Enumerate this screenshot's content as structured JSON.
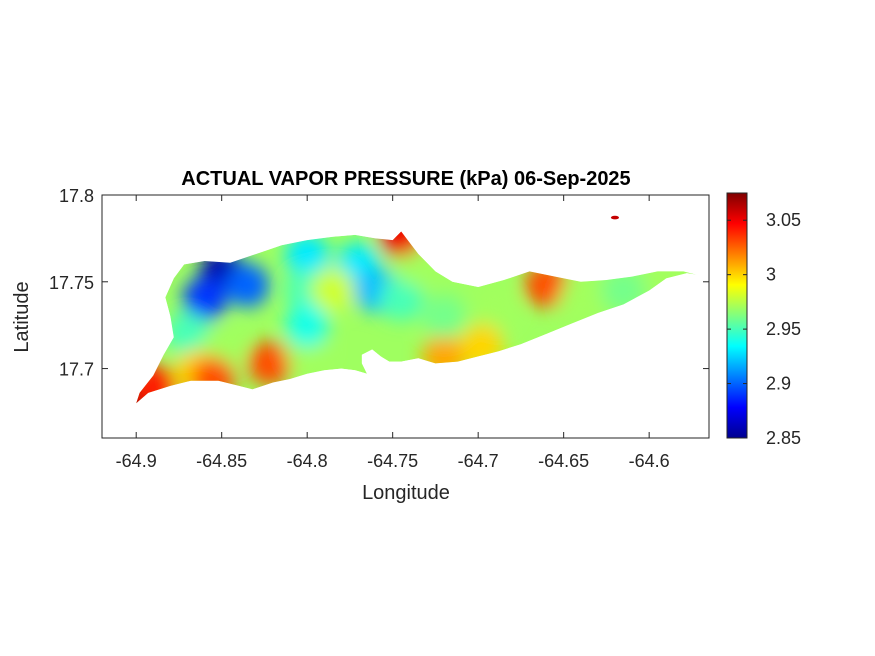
{
  "chart_data": {
    "type": "heatmap",
    "title": "ACTUAL VAPOR PRESSURE (kPa) 06-Sep-2025",
    "xlabel": "Longitude",
    "ylabel": "Latitude",
    "xlim": [
      -64.92,
      -64.565
    ],
    "ylim": [
      17.66,
      17.8
    ],
    "x_ticks": [
      -64.9,
      -64.85,
      -64.8,
      -64.75,
      -64.7,
      -64.65,
      -64.6
    ],
    "x_tick_labels": [
      "-64.9",
      "-64.85",
      "-64.8",
      "-64.75",
      "-64.7",
      "-64.65",
      "-64.6"
    ],
    "y_ticks": [
      17.7,
      17.75,
      17.8
    ],
    "y_tick_labels": [
      "17.7",
      "17.75",
      "17.8"
    ],
    "colorbar": {
      "colormap": "jet",
      "range": [
        2.85,
        3.075
      ],
      "ticks": [
        2.85,
        2.9,
        2.95,
        3,
        3.05
      ],
      "tick_labels": [
        "2.85",
        "2.9",
        "2.95",
        "3",
        "3.05"
      ]
    },
    "island_outline": [
      [
        -64.9,
        17.68
      ],
      [
        -64.893,
        17.686
      ],
      [
        -64.88,
        17.69
      ],
      [
        -64.868,
        17.693
      ],
      [
        -64.852,
        17.693
      ],
      [
        -64.84,
        17.69
      ],
      [
        -64.832,
        17.688
      ],
      [
        -64.82,
        17.692
      ],
      [
        -64.81,
        17.694
      ],
      [
        -64.8,
        17.697
      ],
      [
        -64.79,
        17.699
      ],
      [
        -64.78,
        17.7
      ],
      [
        -64.772,
        17.699
      ],
      [
        -64.765,
        17.697
      ],
      [
        -64.768,
        17.703
      ],
      [
        -64.768,
        17.708
      ],
      [
        -64.762,
        17.711
      ],
      [
        -64.757,
        17.707
      ],
      [
        -64.752,
        17.704
      ],
      [
        -64.745,
        17.704
      ],
      [
        -64.735,
        17.706
      ],
      [
        -64.725,
        17.703
      ],
      [
        -64.712,
        17.704
      ],
      [
        -64.7,
        17.707
      ],
      [
        -64.688,
        17.71
      ],
      [
        -64.675,
        17.714
      ],
      [
        -64.66,
        17.72
      ],
      [
        -64.645,
        17.726
      ],
      [
        -64.63,
        17.732
      ],
      [
        -64.615,
        17.737
      ],
      [
        -64.6,
        17.745
      ],
      [
        -64.59,
        17.752
      ],
      [
        -64.578,
        17.755
      ],
      [
        -64.572,
        17.754
      ],
      [
        -64.58,
        17.756
      ],
      [
        -64.595,
        17.756
      ],
      [
        -64.61,
        17.753
      ],
      [
        -64.625,
        17.751
      ],
      [
        -64.64,
        17.75
      ],
      [
        -64.655,
        17.753
      ],
      [
        -64.67,
        17.756
      ],
      [
        -64.685,
        17.751
      ],
      [
        -64.7,
        17.747
      ],
      [
        -64.715,
        17.75
      ],
      [
        -64.725,
        17.756
      ],
      [
        -64.735,
        17.766
      ],
      [
        -64.742,
        17.775
      ],
      [
        -64.745,
        17.779
      ],
      [
        -64.75,
        17.774
      ],
      [
        -64.76,
        17.775
      ],
      [
        -64.772,
        17.777
      ],
      [
        -64.785,
        17.776
      ],
      [
        -64.8,
        17.774
      ],
      [
        -64.815,
        17.771
      ],
      [
        -64.83,
        17.766
      ],
      [
        -64.845,
        17.761
      ],
      [
        -64.86,
        17.762
      ],
      [
        -64.872,
        17.76
      ],
      [
        -64.878,
        17.752
      ],
      [
        -64.883,
        17.741
      ],
      [
        -64.88,
        17.73
      ],
      [
        -64.878,
        17.718
      ],
      [
        -64.884,
        17.708
      ],
      [
        -64.89,
        17.696
      ],
      [
        -64.898,
        17.686
      ]
    ],
    "offshore_islet": [
      -64.62,
      17.787
    ],
    "field_samples": [
      {
        "lon": -64.85,
        "lat": 17.756,
        "value": 2.86
      },
      {
        "lon": -64.86,
        "lat": 17.74,
        "value": 2.89
      },
      {
        "lon": -64.835,
        "lat": 17.748,
        "value": 2.9
      },
      {
        "lon": -64.8,
        "lat": 17.765,
        "value": 2.93
      },
      {
        "lon": -64.77,
        "lat": 17.76,
        "value": 2.93
      },
      {
        "lon": -64.76,
        "lat": 17.745,
        "value": 2.92
      },
      {
        "lon": -64.8,
        "lat": 17.745,
        "value": 2.95
      },
      {
        "lon": -64.785,
        "lat": 17.745,
        "value": 2.98
      },
      {
        "lon": -64.87,
        "lat": 17.72,
        "value": 2.95
      },
      {
        "lon": -64.85,
        "lat": 17.71,
        "value": 2.97
      },
      {
        "lon": -64.865,
        "lat": 17.698,
        "value": 3.0
      },
      {
        "lon": -64.855,
        "lat": 17.694,
        "value": 3.03
      },
      {
        "lon": -64.822,
        "lat": 17.703,
        "value": 3.03
      },
      {
        "lon": -64.8,
        "lat": 17.71,
        "value": 2.97
      },
      {
        "lon": -64.8,
        "lat": 17.725,
        "value": 2.94
      },
      {
        "lon": -64.745,
        "lat": 17.74,
        "value": 2.95
      },
      {
        "lon": -64.735,
        "lat": 17.76,
        "value": 2.97
      },
      {
        "lon": -64.745,
        "lat": 17.777,
        "value": 3.05
      },
      {
        "lon": -64.72,
        "lat": 17.707,
        "value": 3.01
      },
      {
        "lon": -64.72,
        "lat": 17.73,
        "value": 2.96
      },
      {
        "lon": -64.69,
        "lat": 17.735,
        "value": 2.97
      },
      {
        "lon": -64.66,
        "lat": 17.748,
        "value": 3.03
      },
      {
        "lon": -64.64,
        "lat": 17.74,
        "value": 2.97
      },
      {
        "lon": -64.615,
        "lat": 17.745,
        "value": 2.96
      },
      {
        "lon": -64.59,
        "lat": 17.753,
        "value": 2.97
      },
      {
        "lon": -64.698,
        "lat": 17.713,
        "value": 3.0
      },
      {
        "lon": -64.898,
        "lat": 17.681,
        "value": 3.07
      },
      {
        "lon": -64.89,
        "lat": 17.69,
        "value": 3.04
      },
      {
        "lon": -64.62,
        "lat": 17.787,
        "value": 3.06
      }
    ]
  }
}
